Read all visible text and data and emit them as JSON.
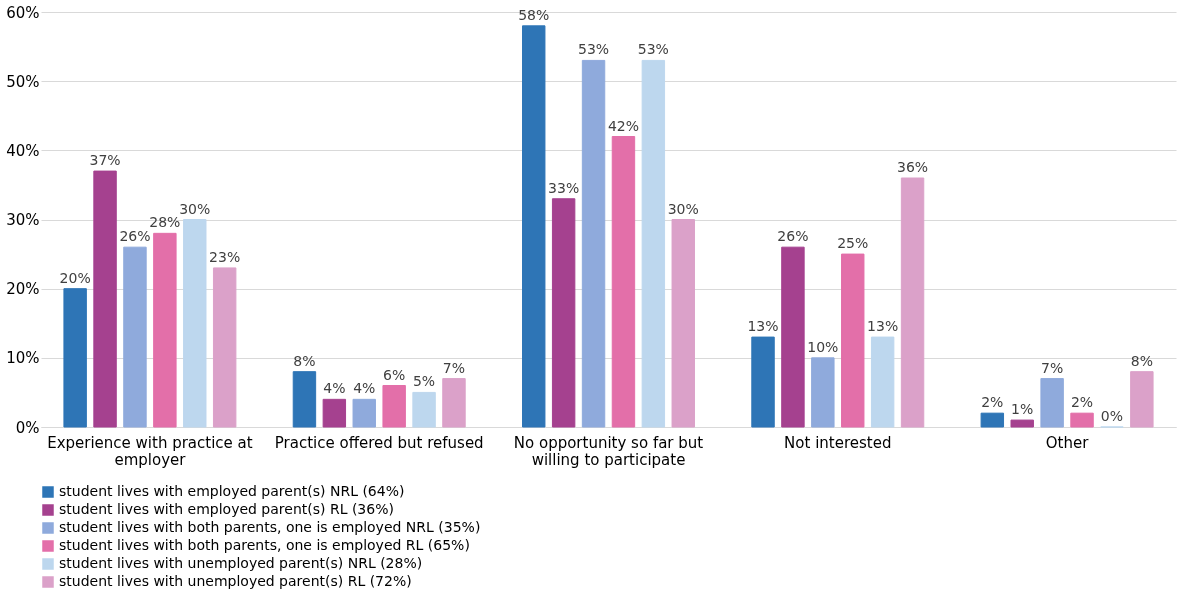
{
  "chart_data": {
    "type": "bar",
    "categories": [
      "Experience with practice at employer",
      "Practice offered but refused",
      "No opportunity so far but willing to participate",
      "Not interested",
      "Other"
    ],
    "series": [
      {
        "name": "student lives with employed parent(s) NRL (64%)",
        "color": "#2e75b6",
        "values": [
          20,
          8,
          58,
          13,
          2
        ],
        "value_labels": [
          "20%",
          "8%",
          "58%",
          "13%",
          "2%"
        ]
      },
      {
        "name": "student lives with employed parent(s) RL (36%)",
        "color": "#a5418f",
        "values": [
          37,
          4,
          33,
          26,
          1
        ],
        "value_labels": [
          "37%",
          "4%",
          "33%",
          "26%",
          "1%"
        ]
      },
      {
        "name": "student lives with both parents, one is employed NRL (35%)",
        "color": "#8faadc",
        "values": [
          26,
          4,
          53,
          10,
          7
        ],
        "value_labels": [
          "26%",
          "4%",
          "53%",
          "10%",
          "7%"
        ]
      },
      {
        "name": "student lives with both parents, one is employed RL (65%)",
        "color": "#e36fa9",
        "values": [
          28,
          6,
          42,
          25,
          2
        ],
        "value_labels": [
          "28%",
          "6%",
          "42%",
          "25%",
          "2%"
        ]
      },
      {
        "name": "student lives with unemployed parent(s) NRL (28%)",
        "color": "#bdd7ee",
        "values": [
          30,
          5,
          53,
          13,
          0
        ],
        "value_labels": [
          "30%",
          "5%",
          "53%",
          "13%",
          "0%"
        ]
      },
      {
        "name": "student lives with unemployed parent(s) RL (72%)",
        "color": "#dba1c9",
        "values": [
          23,
          7,
          30,
          36,
          8
        ],
        "value_labels": [
          "23%",
          "7%",
          "30%",
          "36%",
          "8%"
        ]
      }
    ],
    "ylim": [
      0,
      60
    ],
    "yticks": [
      {
        "value": 0,
        "label": "0%"
      },
      {
        "value": 10,
        "label": "10%"
      },
      {
        "value": 20,
        "label": "20%"
      },
      {
        "value": 30,
        "label": "30%"
      },
      {
        "value": 40,
        "label": "40%"
      },
      {
        "value": 50,
        "label": "50%"
      },
      {
        "value": 60,
        "label": "60%"
      }
    ],
    "grid": "y",
    "legend": "bottom"
  }
}
